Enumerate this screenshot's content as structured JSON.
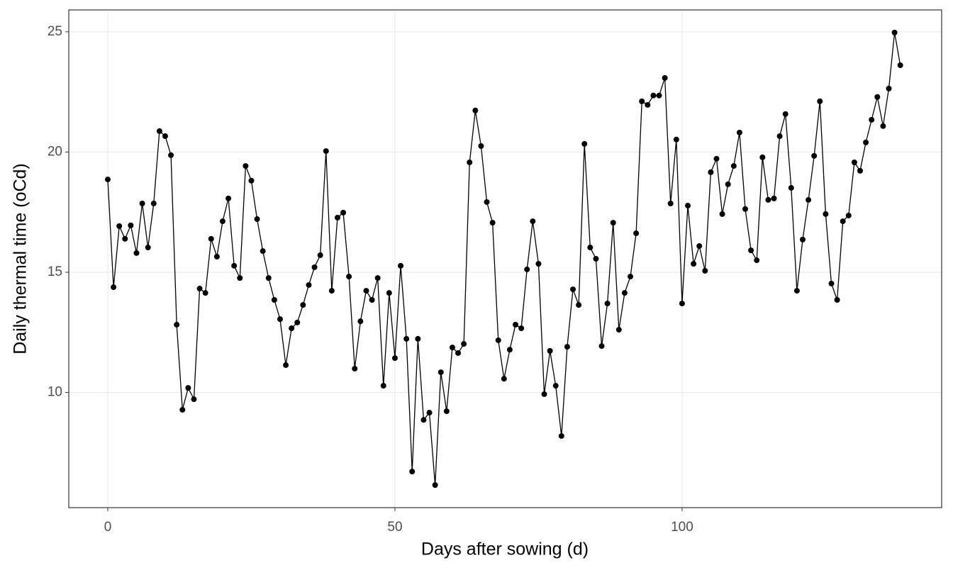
{
  "chart_data": {
    "type": "line",
    "x_label": "Days after sowing (d)",
    "y_label": "Daily thermal time (oCd)",
    "x": [
      0,
      1,
      2,
      3,
      4,
      5,
      6,
      7,
      8,
      9,
      10,
      11,
      12,
      13,
      14,
      15,
      16,
      17,
      18,
      19,
      20,
      21,
      22,
      23,
      24,
      25,
      26,
      27,
      28,
      29,
      30,
      31,
      32,
      33,
      34,
      35,
      36,
      37,
      38,
      39,
      40,
      41,
      42,
      43,
      44,
      45,
      46,
      47,
      48,
      49,
      50,
      51,
      52,
      53,
      54,
      55,
      56,
      57,
      58,
      59,
      60,
      61,
      62,
      63,
      64,
      65,
      66,
      67,
      68,
      69,
      70,
      71,
      72,
      73,
      74,
      75,
      76,
      77,
      78,
      79,
      80,
      81,
      82,
      83,
      84,
      85,
      86,
      87,
      88,
      89,
      90,
      91,
      92,
      93,
      94,
      95,
      96,
      97,
      98,
      99,
      100,
      101,
      102,
      103,
      104,
      105,
      106,
      107,
      108,
      109,
      110,
      111,
      112,
      113,
      114,
      115,
      116,
      117,
      118,
      119,
      120,
      121,
      122,
      123,
      124,
      125,
      126,
      127,
      128,
      129,
      130,
      131,
      132,
      133,
      134,
      135,
      136,
      137,
      138
    ],
    "series": [
      {
        "color": "#000000",
        "values": [
          18.86,
          14.38,
          16.92,
          16.39,
          16.95,
          15.8,
          17.86,
          16.03,
          17.86,
          20.87,
          20.66,
          19.87,
          12.82,
          9.28,
          10.19,
          9.72,
          14.32,
          14.14,
          16.39,
          15.65,
          17.12,
          18.07,
          15.27,
          14.76,
          19.42,
          18.81,
          17.21,
          15.88,
          14.76,
          13.85,
          13.05,
          11.14,
          12.67,
          12.91,
          13.64,
          14.47,
          15.21,
          15.71,
          20.04,
          14.23,
          17.27,
          17.48,
          14.82,
          10.99,
          12.96,
          14.23,
          13.85,
          14.76,
          10.28,
          14.14,
          11.43,
          15.27,
          12.23,
          6.71,
          12.23,
          8.86,
          9.16,
          6.15,
          10.84,
          9.22,
          11.87,
          11.64,
          12.02,
          19.57,
          21.73,
          20.25,
          17.92,
          17.06,
          12.17,
          10.57,
          11.78,
          12.82,
          12.67,
          15.12,
          17.12,
          15.35,
          9.93,
          11.73,
          10.28,
          8.19,
          11.9,
          14.29,
          13.64,
          20.34,
          16.03,
          15.56,
          11.93,
          13.7,
          17.06,
          12.61,
          14.14,
          14.82,
          16.62,
          22.11,
          21.96,
          22.35,
          22.35,
          23.08,
          17.86,
          20.52,
          13.7,
          17.77,
          15.35,
          16.09,
          15.06,
          19.16,
          19.72,
          17.42,
          18.66,
          19.42,
          20.81,
          17.63,
          15.91,
          15.5,
          19.78,
          18.01,
          18.07,
          20.66,
          21.58,
          18.51,
          14.23,
          16.36,
          18.01,
          19.84,
          22.11,
          17.42,
          14.53,
          13.85,
          17.12,
          17.36,
          19.57,
          19.22,
          20.4,
          21.34,
          22.29,
          21.08,
          22.64,
          24.97,
          23.61
        ]
      }
    ],
    "xlim": [
      -6.79,
      145.2
    ],
    "xticks": [
      0,
      50,
      100
    ],
    "ylim": [
      5.21,
      25.91
    ],
    "yticks": [
      10,
      15,
      20,
      25
    ],
    "grid": true
  }
}
